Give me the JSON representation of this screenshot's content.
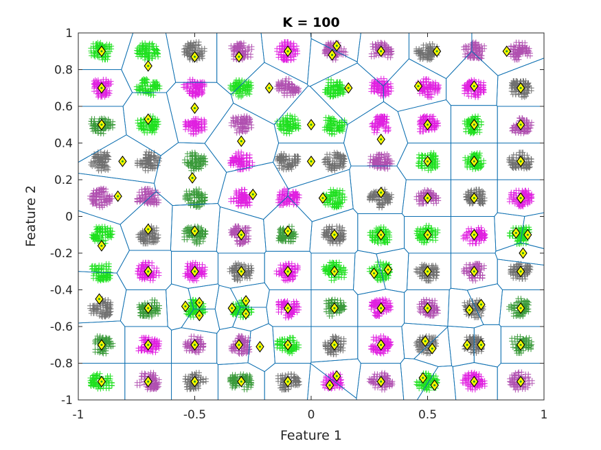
{
  "chart_data": {
    "type": "scatter",
    "title": "K = 100",
    "xlabel": "Feature 1",
    "ylabel": "Feature 2",
    "xlim": [
      -1,
      1
    ],
    "ylim": [
      -1,
      1
    ],
    "grid": false,
    "legend": "none",
    "x_ticks": [
      -1,
      -0.5,
      0,
      0.5,
      1
    ],
    "x_tick_labels": [
      "-1",
      "-0.5",
      "0",
      "0.5",
      "1"
    ],
    "y_ticks": [
      -1,
      -0.8,
      -0.6,
      -0.4,
      -0.2,
      0,
      0.2,
      0.4,
      0.6,
      0.8,
      1
    ],
    "y_tick_labels": [
      "-1",
      "-0.8",
      "-0.6",
      "-0.4",
      "-0.2",
      "0",
      "0.2",
      "0.4",
      "0.6",
      "0.8",
      "1"
    ],
    "colors": {
      "axes": "#262626",
      "boundary": "#0b6eb0",
      "centroid_fill": "#ffff00",
      "centroid_edge": "#000000",
      "centroid_dot": "#2a9d2a",
      "cluster_palette": [
        "#1fe01f",
        "#b050b0",
        "#707070",
        "#e020e0",
        "#3a9a3a"
      ]
    },
    "clusters": {
      "grid_x": [
        -0.9,
        -0.7,
        -0.5,
        -0.3,
        -0.1,
        0.1,
        0.3,
        0.5,
        0.7,
        0.9
      ],
      "grid_y": [
        0.9,
        0.7,
        0.5,
        0.3,
        0.1,
        -0.1,
        -0.3,
        -0.5,
        -0.7,
        -0.9
      ],
      "color_rows": [
        [
          0,
          0,
          2,
          1,
          3,
          1,
          1,
          2,
          1,
          1
        ],
        [
          3,
          0,
          3,
          0,
          1,
          0,
          3,
          3,
          3,
          2
        ],
        [
          4,
          0,
          3,
          1,
          0,
          0,
          3,
          3,
          0,
          1
        ],
        [
          2,
          2,
          4,
          3,
          2,
          2,
          1,
          0,
          0,
          2
        ],
        [
          1,
          1,
          4,
          3,
          3,
          0,
          2,
          1,
          2,
          3
        ],
        [
          0,
          2,
          4,
          1,
          4,
          2,
          0,
          0,
          3,
          0
        ],
        [
          0,
          3,
          3,
          2,
          3,
          0,
          0,
          2,
          1,
          2
        ],
        [
          2,
          4,
          0,
          0,
          3,
          4,
          3,
          1,
          2,
          4
        ],
        [
          4,
          3,
          1,
          1,
          0,
          2,
          3,
          2,
          2,
          4
        ],
        [
          0,
          1,
          2,
          4,
          2,
          3,
          1,
          0,
          3,
          1
        ]
      ]
    },
    "centroids": [
      {
        "x": -0.9,
        "y": 0.9
      },
      {
        "x": -0.7,
        "y": 0.82
      },
      {
        "x": -0.5,
        "y": 0.87
      },
      {
        "x": -0.31,
        "y": 0.87
      },
      {
        "x": -0.1,
        "y": 0.9
      },
      {
        "x": 0.11,
        "y": 0.93
      },
      {
        "x": 0.09,
        "y": 0.88
      },
      {
        "x": 0.3,
        "y": 0.9
      },
      {
        "x": 0.54,
        "y": 0.9
      },
      {
        "x": 0.84,
        "y": 0.9
      },
      {
        "x": -0.9,
        "y": 0.7
      },
      {
        "x": -0.18,
        "y": 0.7
      },
      {
        "x": 0.16,
        "y": 0.7
      },
      {
        "x": 0.46,
        "y": 0.71
      },
      {
        "x": 0.7,
        "y": 0.71
      },
      {
        "x": 0.9,
        "y": 0.7
      },
      {
        "x": -0.5,
        "y": 0.59
      },
      {
        "x": -0.9,
        "y": 0.5
      },
      {
        "x": -0.7,
        "y": 0.53
      },
      {
        "x": 0.0,
        "y": 0.5
      },
      {
        "x": 0.5,
        "y": 0.5
      },
      {
        "x": 0.7,
        "y": 0.5
      },
      {
        "x": 0.9,
        "y": 0.5
      },
      {
        "x": -0.3,
        "y": 0.41
      },
      {
        "x": 0.3,
        "y": 0.42
      },
      {
        "x": -0.81,
        "y": 0.3
      },
      {
        "x": 0.0,
        "y": 0.3
      },
      {
        "x": 0.5,
        "y": 0.3
      },
      {
        "x": 0.7,
        "y": 0.3
      },
      {
        "x": 0.9,
        "y": 0.3
      },
      {
        "x": -0.51,
        "y": 0.21
      },
      {
        "x": -0.83,
        "y": 0.11
      },
      {
        "x": -0.25,
        "y": 0.12
      },
      {
        "x": 0.05,
        "y": 0.1
      },
      {
        "x": 0.3,
        "y": 0.13
      },
      {
        "x": 0.5,
        "y": 0.1
      },
      {
        "x": 0.7,
        "y": 0.1
      },
      {
        "x": 0.9,
        "y": 0.1
      },
      {
        "x": -0.7,
        "y": -0.07
      },
      {
        "x": -0.5,
        "y": -0.08
      },
      {
        "x": -0.3,
        "y": -0.1
      },
      {
        "x": -0.1,
        "y": -0.08
      },
      {
        "x": 0.1,
        "y": -0.1
      },
      {
        "x": 0.3,
        "y": -0.1
      },
      {
        "x": 0.5,
        "y": -0.1
      },
      {
        "x": 0.7,
        "y": -0.1
      },
      {
        "x": 0.88,
        "y": -0.09
      },
      {
        "x": 0.93,
        "y": -0.1
      },
      {
        "x": -0.9,
        "y": -0.16
      },
      {
        "x": 0.91,
        "y": -0.2
      },
      {
        "x": -0.7,
        "y": -0.3
      },
      {
        "x": -0.5,
        "y": -0.3
      },
      {
        "x": -0.3,
        "y": -0.3
      },
      {
        "x": -0.1,
        "y": -0.3
      },
      {
        "x": 0.1,
        "y": -0.3
      },
      {
        "x": 0.27,
        "y": -0.31
      },
      {
        "x": 0.33,
        "y": -0.29
      },
      {
        "x": 0.5,
        "y": -0.3
      },
      {
        "x": 0.7,
        "y": -0.3
      },
      {
        "x": 0.9,
        "y": -0.3
      },
      {
        "x": -0.91,
        "y": -0.45
      },
      {
        "x": -0.7,
        "y": -0.5
      },
      {
        "x": -0.54,
        "y": -0.49
      },
      {
        "x": -0.48,
        "y": -0.47
      },
      {
        "x": -0.48,
        "y": -0.54
      },
      {
        "x": -0.34,
        "y": -0.5
      },
      {
        "x": -0.28,
        "y": -0.46
      },
      {
        "x": -0.28,
        "y": -0.53
      },
      {
        "x": -0.1,
        "y": -0.5
      },
      {
        "x": 0.1,
        "y": -0.5
      },
      {
        "x": 0.3,
        "y": -0.5
      },
      {
        "x": 0.5,
        "y": -0.5
      },
      {
        "x": 0.68,
        "y": -0.51
      },
      {
        "x": 0.73,
        "y": -0.48
      },
      {
        "x": 0.9,
        "y": -0.5
      },
      {
        "x": -0.9,
        "y": -0.7
      },
      {
        "x": -0.7,
        "y": -0.7
      },
      {
        "x": -0.5,
        "y": -0.7
      },
      {
        "x": -0.31,
        "y": -0.7
      },
      {
        "x": -0.22,
        "y": -0.71
      },
      {
        "x": -0.1,
        "y": -0.7
      },
      {
        "x": 0.1,
        "y": -0.7
      },
      {
        "x": 0.3,
        "y": -0.7
      },
      {
        "x": 0.49,
        "y": -0.68
      },
      {
        "x": 0.52,
        "y": -0.72
      },
      {
        "x": 0.67,
        "y": -0.7
      },
      {
        "x": 0.73,
        "y": -0.7
      },
      {
        "x": 0.9,
        "y": -0.7
      },
      {
        "x": -0.9,
        "y": -0.9
      },
      {
        "x": -0.7,
        "y": -0.9
      },
      {
        "x": -0.5,
        "y": -0.9
      },
      {
        "x": -0.3,
        "y": -0.9
      },
      {
        "x": -0.1,
        "y": -0.9
      },
      {
        "x": 0.08,
        "y": -0.92
      },
      {
        "x": 0.11,
        "y": -0.87
      },
      {
        "x": 0.3,
        "y": -0.9
      },
      {
        "x": 0.48,
        "y": -0.88
      },
      {
        "x": 0.53,
        "y": -0.92
      },
      {
        "x": 0.7,
        "y": -0.9
      },
      {
        "x": 0.9,
        "y": -0.9
      }
    ]
  }
}
